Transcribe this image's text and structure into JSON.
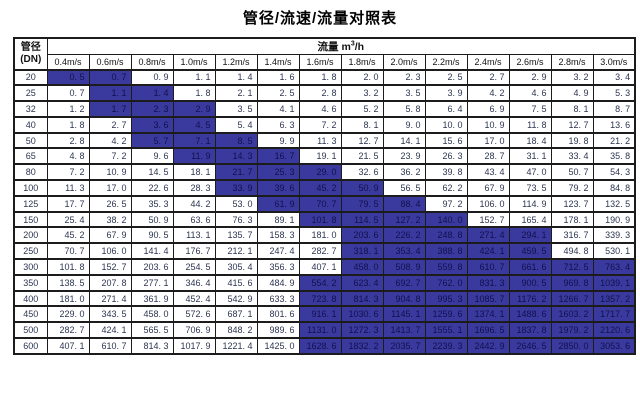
{
  "title": "管径/流速/流量对照表",
  "colors": {
    "highlight_bg": "#3a3a9e",
    "highlight_text": "#11104e",
    "cell_text": "#2c3550",
    "grid": "#1c1c1c",
    "header_text": "#111111",
    "background": "#ffffff"
  },
  "table": {
    "corner_header": {
      "line1": "管径",
      "line2": "(DN)"
    },
    "flow_header": {
      "label": "流量",
      "unit_m": "m",
      "unit_exp": "3",
      "unit_per": "/h"
    },
    "velocity_headers": [
      "0.4m/s",
      "0.6m/s",
      "0.8m/s",
      "1.0m/s",
      "1.2m/s",
      "1.4m/s",
      "1.6m/s",
      "1.8m/s",
      "2.0m/s",
      "2.2m/s",
      "2.4m/s",
      "2.6m/s",
      "2.8m/s",
      "3.0m/s"
    ],
    "rows": [
      {
        "dn": "20",
        "values": [
          "0.5",
          "0.7",
          "0.9",
          "1.1",
          "1.4",
          "1.6",
          "1.8",
          "2.0",
          "2.3",
          "2.5",
          "2.7",
          "2.9",
          "3.2",
          "3.4"
        ],
        "highlight": {
          "from": 0,
          "to": 1
        }
      },
      {
        "dn": "25",
        "values": [
          "0.7",
          "1.1",
          "1.4",
          "1.8",
          "2.1",
          "2.5",
          "2.8",
          "3.2",
          "3.5",
          "3.9",
          "4.2",
          "4.6",
          "4.9",
          "5.3"
        ],
        "highlight": {
          "from": 1,
          "to": 2
        }
      },
      {
        "dn": "32",
        "values": [
          "1.2",
          "1.7",
          "2.3",
          "2.9",
          "3.5",
          "4.1",
          "4.6",
          "5.2",
          "5.8",
          "6.4",
          "6.9",
          "7.5",
          "8.1",
          "8.7"
        ],
        "highlight": {
          "from": 1,
          "to": 3
        }
      },
      {
        "dn": "40",
        "values": [
          "1.8",
          "2.7",
          "3.6",
          "4.5",
          "5.4",
          "6.3",
          "7.2",
          "8.1",
          "9.0",
          "10.0",
          "10.9",
          "11.8",
          "12.7",
          "13.6"
        ],
        "highlight": {
          "from": 2,
          "to": 3
        }
      },
      {
        "dn": "50",
        "values": [
          "2.8",
          "4.2",
          "5.7",
          "7.1",
          "8.5",
          "9.9",
          "11.3",
          "12.7",
          "14.1",
          "15.6",
          "17.0",
          "18.4",
          "19.8",
          "21.2"
        ],
        "highlight": {
          "from": 2,
          "to": 4
        }
      },
      {
        "dn": "65",
        "values": [
          "4.8",
          "7.2",
          "9.6",
          "11.9",
          "14.3",
          "16.7",
          "19.1",
          "21.5",
          "23.9",
          "26.3",
          "28.7",
          "31.1",
          "33.4",
          "35.8"
        ],
        "highlight": {
          "from": 3,
          "to": 5
        }
      },
      {
        "dn": "80",
        "values": [
          "7.2",
          "10.9",
          "14.5",
          "18.1",
          "21.7",
          "25.3",
          "29.0",
          "32.6",
          "36.2",
          "39.8",
          "43.4",
          "47.0",
          "50.7",
          "54.3"
        ],
        "highlight": {
          "from": 4,
          "to": 6
        }
      },
      {
        "dn": "100",
        "values": [
          "11.3",
          "17.0",
          "22.6",
          "28.3",
          "33.9",
          "39.6",
          "45.2",
          "50.9",
          "56.5",
          "62.2",
          "67.9",
          "73.5",
          "79.2",
          "84.8"
        ],
        "highlight": {
          "from": 4,
          "to": 7
        }
      },
      {
        "dn": "125",
        "values": [
          "17.7",
          "26.5",
          "35.3",
          "44.2",
          "53.0",
          "61.9",
          "70.7",
          "79.5",
          "88.4",
          "97.2",
          "106.0",
          "114.9",
          "123.7",
          "132.5"
        ],
        "highlight": {
          "from": 5,
          "to": 8
        }
      },
      {
        "dn": "150",
        "values": [
          "25.4",
          "38.2",
          "50.9",
          "63.6",
          "76.3",
          "89.1",
          "101.8",
          "114.5",
          "127.2",
          "140.0",
          "152.7",
          "165.4",
          "178.1",
          "190.9"
        ],
        "highlight": {
          "from": 6,
          "to": 9
        }
      },
      {
        "dn": "200",
        "values": [
          "45.2",
          "67.9",
          "90.5",
          "113.1",
          "135.7",
          "158.3",
          "181.0",
          "203.6",
          "226.2",
          "248.8",
          "271.4",
          "294.1",
          "316.7",
          "339.3"
        ],
        "highlight": {
          "from": 7,
          "to": 11
        }
      },
      {
        "dn": "250",
        "values": [
          "70.7",
          "106.0",
          "141.4",
          "176.7",
          "212.1",
          "247.4",
          "282.7",
          "318.1",
          "353.4",
          "388.8",
          "424.1",
          "459.5",
          "494.8",
          "530.1"
        ],
        "highlight": {
          "from": 7,
          "to": 11
        }
      },
      {
        "dn": "300",
        "values": [
          "101.8",
          "152.7",
          "203.6",
          "254.5",
          "305.4",
          "356.3",
          "407.1",
          "458.0",
          "508.9",
          "559.8",
          "610.7",
          "661.6",
          "712.5",
          "763.4"
        ],
        "highlight": {
          "from": 7,
          "to": 13
        }
      },
      {
        "dn": "350",
        "values": [
          "138.5",
          "207.8",
          "277.1",
          "346.4",
          "415.6",
          "484.9",
          "554.2",
          "623.4",
          "692.7",
          "762.0",
          "831.3",
          "900.5",
          "969.8",
          "1039.1"
        ],
        "highlight": {
          "from": 6,
          "to": 13
        }
      },
      {
        "dn": "400",
        "values": [
          "181.0",
          "271.4",
          "361.9",
          "452.4",
          "542.9",
          "633.3",
          "723.8",
          "814.3",
          "904.8",
          "995.3",
          "1085.7",
          "1176.2",
          "1266.7",
          "1357.2"
        ],
        "highlight": {
          "from": 6,
          "to": 13
        }
      },
      {
        "dn": "450",
        "values": [
          "229.0",
          "343.5",
          "458.0",
          "572.6",
          "687.1",
          "801.6",
          "916.1",
          "1030.6",
          "1145.1",
          "1259.6",
          "1374.1",
          "1488.6",
          "1603.2",
          "1717.7"
        ],
        "highlight": {
          "from": 6,
          "to": 13
        }
      },
      {
        "dn": "500",
        "values": [
          "282.7",
          "424.1",
          "565.5",
          "706.9",
          "848.2",
          "989.6",
          "1131.0",
          "1272.3",
          "1413.7",
          "1555.1",
          "1696.5",
          "1837.8",
          "1979.2",
          "2120.6"
        ],
        "highlight": {
          "from": 6,
          "to": 13
        }
      },
      {
        "dn": "600",
        "values": [
          "407.1",
          "610.7",
          "814.3",
          "1017.9",
          "1221.4",
          "1425.0",
          "1628.6",
          "1832.2",
          "2035.7",
          "2239.3",
          "2442.9",
          "2646.5",
          "2850.0",
          "3053.6"
        ],
        "highlight": {
          "from": 6,
          "to": 13
        }
      }
    ]
  }
}
